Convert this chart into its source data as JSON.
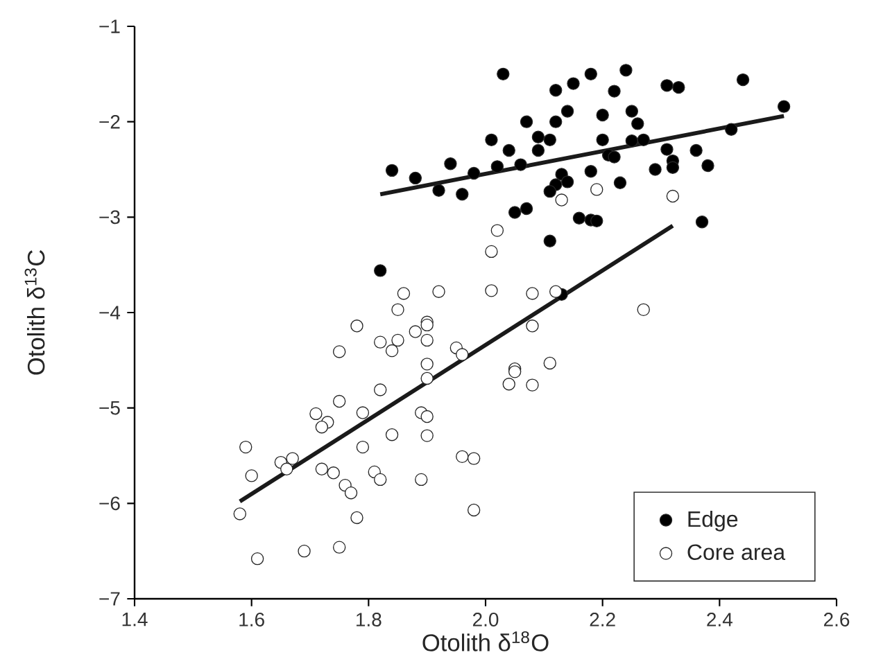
{
  "chart_data": {
    "type": "scatter",
    "xlabel": "Otolith δ$^{18}$O",
    "ylabel": "Otolith δ$^{13}$C",
    "xlim": [
      1.4,
      2.6
    ],
    "ylim": [
      -7,
      -1
    ],
    "xticks": [
      1.4,
      1.6,
      1.8,
      {
        "value": 2.0,
        "label": "2.0"
      },
      2.2,
      2.4,
      2.6
    ],
    "yticks": [
      {
        "value": -7,
        "label": "−7"
      },
      {
        "value": -6,
        "label": "−6"
      },
      {
        "value": -5,
        "label": "−5"
      },
      {
        "value": -4,
        "label": "−4"
      },
      {
        "value": -3,
        "label": "−3"
      },
      {
        "value": -2,
        "label": "−2"
      },
      {
        "value": -1,
        "label": "−1"
      }
    ],
    "grid": false,
    "legend": "bottom right",
    "series": [
      {
        "name": "Edge",
        "marker": "circle",
        "color": "#000000",
        "x": [
          2.03,
          2.24,
          2.18,
          2.15,
          2.31,
          2.33,
          2.44,
          2.12,
          2.22,
          2.51,
          2.14,
          2.25,
          2.2,
          2.07,
          2.12,
          2.26,
          2.01,
          2.09,
          2.11,
          2.2,
          2.25,
          2.27,
          2.42,
          2.04,
          2.09,
          2.31,
          2.36,
          2.21,
          2.22,
          1.94,
          2.02,
          2.06,
          2.32,
          2.32,
          2.38,
          1.84,
          2.29,
          2.18,
          1.88,
          1.98,
          2.13,
          2.14,
          2.12,
          2.23,
          1.92,
          1.96,
          2.11,
          2.05,
          2.07,
          2.16,
          2.18,
          2.19,
          2.37,
          2.11,
          1.82,
          2.13
        ],
        "values": [
          -1.5,
          -1.46,
          -1.5,
          -1.6,
          -1.62,
          -1.64,
          -1.56,
          -1.67,
          -1.68,
          -1.84,
          -1.89,
          -1.89,
          -1.93,
          -2.0,
          -2.0,
          -2.02,
          -2.19,
          -2.16,
          -2.19,
          -2.19,
          -2.2,
          -2.19,
          -2.08,
          -2.3,
          -2.3,
          -2.29,
          -2.3,
          -2.35,
          -2.37,
          -2.44,
          -2.47,
          -2.45,
          -2.41,
          -2.48,
          -2.46,
          -2.51,
          -2.5,
          -2.52,
          -2.59,
          -2.54,
          -2.55,
          -2.63,
          -2.66,
          -2.64,
          -2.72,
          -2.76,
          -2.73,
          -2.95,
          -2.91,
          -3.01,
          -3.03,
          -3.04,
          -3.05,
          -3.25,
          -3.56,
          -3.81
        ]
      },
      {
        "name": "Core area",
        "marker": "circle",
        "color": "#ffffff",
        "x": [
          2.19,
          2.32,
          2.13,
          2.02,
          2.01,
          2.01,
          1.92,
          1.86,
          2.08,
          2.12,
          1.85,
          2.27,
          1.78,
          1.9,
          1.9,
          2.08,
          1.88,
          1.82,
          1.9,
          1.85,
          1.84,
          1.75,
          1.95,
          1.96,
          1.9,
          2.11,
          2.05,
          2.05,
          1.9,
          2.04,
          2.08,
          1.82,
          1.75,
          1.71,
          1.79,
          1.89,
          1.9,
          1.73,
          1.72,
          1.9,
          1.84,
          1.59,
          1.79,
          1.96,
          1.98,
          1.67,
          1.65,
          1.66,
          1.72,
          1.74,
          1.81,
          1.6,
          1.82,
          1.89,
          1.76,
          1.77,
          1.58,
          1.98,
          1.78,
          1.75,
          1.69,
          1.61
        ],
        "values": [
          -2.71,
          -2.78,
          -2.82,
          -3.14,
          -3.36,
          -3.77,
          -3.78,
          -3.8,
          -3.8,
          -3.78,
          -3.97,
          -3.97,
          -4.14,
          -4.1,
          -4.13,
          -4.14,
          -4.2,
          -4.31,
          -4.29,
          -4.29,
          -4.4,
          -4.41,
          -4.37,
          -4.44,
          -4.54,
          -4.53,
          -4.59,
          -4.62,
          -4.69,
          -4.75,
          -4.76,
          -4.81,
          -4.93,
          -5.06,
          -5.05,
          -5.05,
          -5.09,
          -5.15,
          -5.2,
          -5.29,
          -5.28,
          -5.41,
          -5.41,
          -5.51,
          -5.53,
          -5.53,
          -5.57,
          -5.64,
          -5.64,
          -5.68,
          -5.67,
          -5.71,
          -5.75,
          -5.75,
          -5.81,
          -5.89,
          -6.11,
          -6.07,
          -6.15,
          -6.46,
          -6.5,
          -6.58
        ]
      },
      {
        "type": "line",
        "marker": "none",
        "color": "#1a1a1a",
        "x": [
          1.82,
          2.51
        ],
        "values": [
          -2.76,
          -1.94
        ]
      },
      {
        "type": "line",
        "marker": "none",
        "color": "#1a1a1a",
        "x": [
          1.58,
          2.32
        ],
        "values": [
          -5.98,
          -3.09
        ]
      }
    ]
  }
}
